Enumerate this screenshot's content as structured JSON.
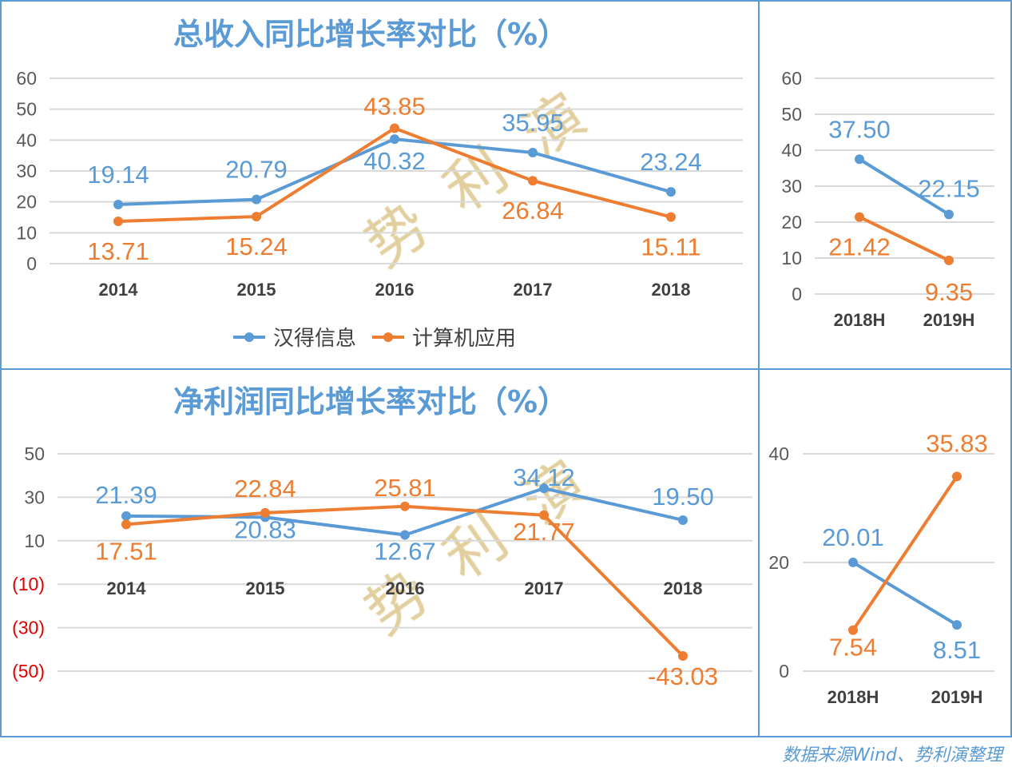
{
  "colors": {
    "series_1": "#5b9bd5",
    "series_2": "#ed7d31",
    "border": "#5b9bd5",
    "grid": "#d9d9d9",
    "negative_tick": "#e00000",
    "watermark": "#d8bf7e"
  },
  "legend": [
    "汉得信息",
    "计算机应用"
  ],
  "watermark": [
    "势",
    "利",
    "演"
  ],
  "source": "数据来源Wind、势利演整理",
  "chart_data": [
    {
      "type": "line",
      "title": "总收入同比增长率对比（%）",
      "categories": [
        "2014",
        "2015",
        "2016",
        "2017",
        "2018"
      ],
      "ylim": [
        0,
        60
      ],
      "yticks": [
        "0",
        "10",
        "20",
        "30",
        "40",
        "50",
        "60"
      ],
      "grid": true,
      "legend_position": "bottom",
      "series": [
        {
          "name": "汉得信息",
          "values": [
            19.14,
            20.79,
            40.32,
            35.95,
            23.24
          ],
          "labels": [
            "19.14",
            "20.79",
            "40.32",
            "35.95",
            "23.24"
          ]
        },
        {
          "name": "计算机应用",
          "values": [
            13.71,
            15.24,
            43.85,
            26.84,
            15.11
          ],
          "labels": [
            "13.71",
            "15.24",
            "43.85",
            "26.84",
            "15.11"
          ]
        }
      ]
    },
    {
      "type": "line",
      "title": "",
      "categories": [
        "2018H",
        "2019H"
      ],
      "ylim": [
        0,
        60
      ],
      "yticks": [
        "0",
        "10",
        "20",
        "30",
        "40",
        "50",
        "60"
      ],
      "grid": true,
      "series": [
        {
          "name": "汉得信息",
          "values": [
            37.5,
            22.15
          ],
          "labels": [
            "37.50",
            "22.15"
          ]
        },
        {
          "name": "计算机应用",
          "values": [
            21.42,
            9.35
          ],
          "labels": [
            "21.42",
            "9.35"
          ]
        }
      ]
    },
    {
      "type": "line",
      "title": "净利润同比增长率对比（%）",
      "categories": [
        "2014",
        "2015",
        "2016",
        "2017",
        "2018"
      ],
      "ylim": [
        -50,
        50
      ],
      "yticks": [
        "(50)",
        "(30)",
        "(10)",
        "10",
        "30",
        "50"
      ],
      "grid": true,
      "series": [
        {
          "name": "汉得信息",
          "values": [
            21.39,
            20.83,
            12.67,
            34.12,
            19.5
          ],
          "labels": [
            "21.39",
            "20.83",
            "12.67",
            "34.12",
            "19.50"
          ]
        },
        {
          "name": "计算机应用",
          "values": [
            17.51,
            22.84,
            25.81,
            21.77,
            -43.03
          ],
          "labels": [
            "17.51",
            "22.84",
            "25.81",
            "21.77",
            "-43.03"
          ]
        }
      ]
    },
    {
      "type": "line",
      "title": "",
      "categories": [
        "2018H",
        "2019H"
      ],
      "ylim": [
        0,
        40
      ],
      "yticks": [
        "0",
        "20",
        "40"
      ],
      "grid": true,
      "series": [
        {
          "name": "汉得信息",
          "values": [
            20.01,
            8.51
          ],
          "labels": [
            "20.01",
            "8.51"
          ]
        },
        {
          "name": "计算机应用",
          "values": [
            7.54,
            35.83
          ],
          "labels": [
            "7.54",
            "35.83"
          ]
        }
      ]
    }
  ]
}
